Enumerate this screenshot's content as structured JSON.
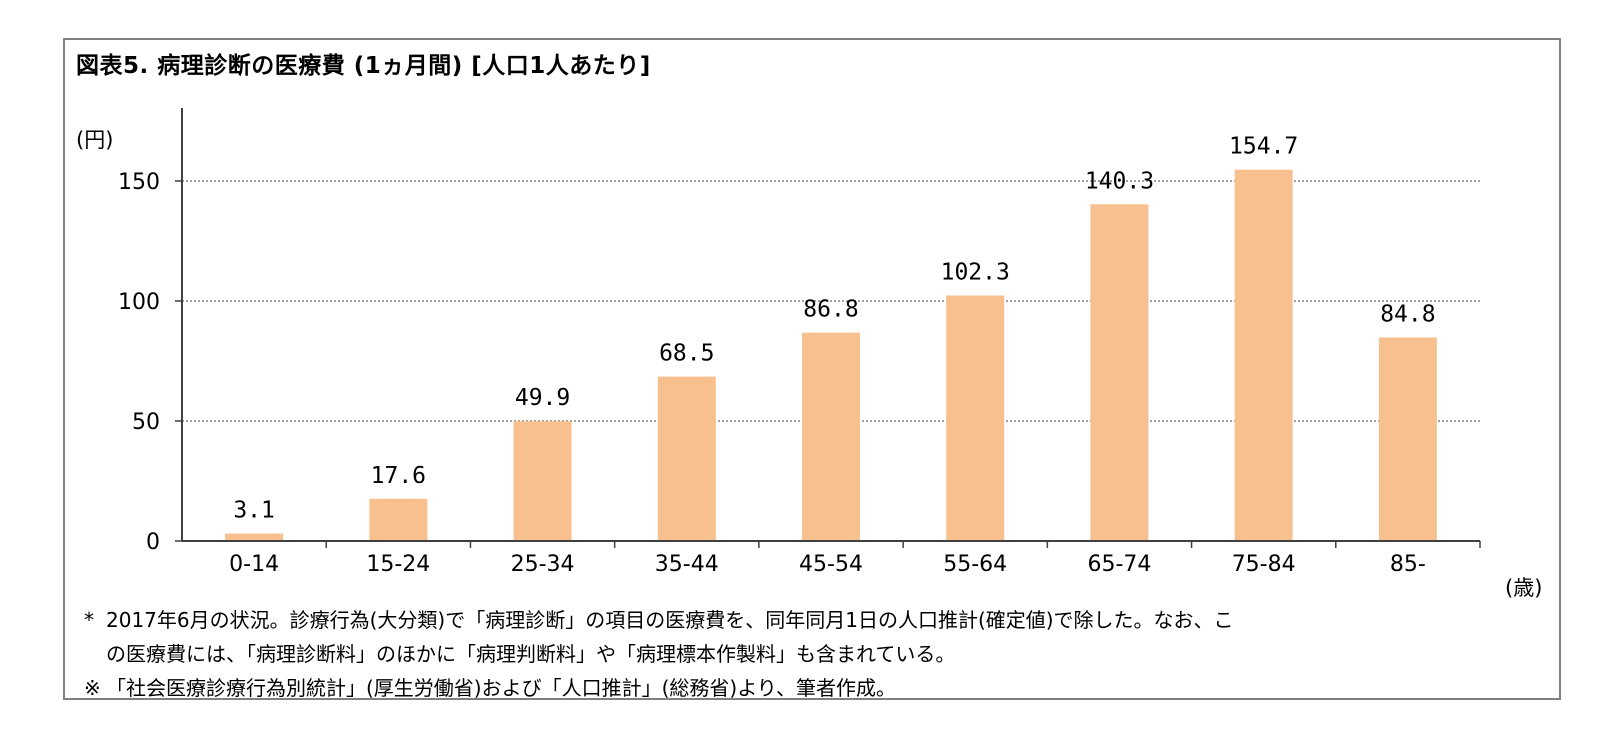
{
  "title": "図表5. 病理診断の医療費 (1ヵ月間) [人口1人あたり]",
  "y_unit": "(円)",
  "x_unit": "(歳)",
  "colors": {
    "bar": "#F9C08F",
    "grid": "#808080",
    "axis": "#404040"
  },
  "chart_data": {
    "type": "bar",
    "categories": [
      "0-14",
      "15-24",
      "25-34",
      "35-44",
      "45-54",
      "55-64",
      "65-74",
      "75-84",
      "85-"
    ],
    "values": [
      3.1,
      17.6,
      49.9,
      68.5,
      86.8,
      102.3,
      140.3,
      154.7,
      84.8
    ],
    "data_labels": [
      "3.1",
      "17.6",
      "49.9",
      "68.5",
      "86.8",
      "102.3",
      "140.3",
      "154.7",
      "84.8"
    ],
    "yticks": [
      0,
      50,
      100,
      150
    ],
    "ylim": [
      0,
      180
    ],
    "grid": true,
    "legend": "none"
  },
  "notes": [
    {
      "mark": "*",
      "text": "2017年6月の状況。診療行為(大分類)で「病理診断」の項目の医療費を、同年同月1日の人口推計(確定値)で除した。なお、こ"
    },
    {
      "mark": "",
      "text": "の医療費には、「病理診断料」のほかに「病理判断料」や「病理標本作製料」も含まれている。"
    },
    {
      "mark": "※",
      "text": "「社会医療診療行為別統計」(厚生労働省)および「人口推計」(総務省)より、筆者作成。"
    }
  ]
}
